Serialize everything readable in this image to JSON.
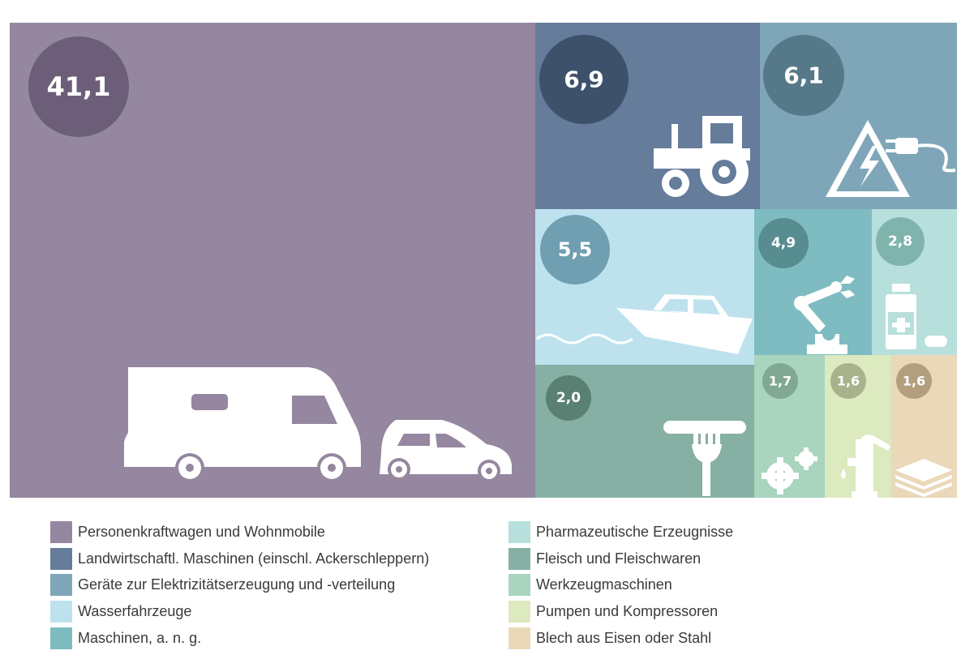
{
  "chart_data": {
    "type": "treemap",
    "decimal_separator": ",",
    "items": [
      {
        "label": "Personenkraftwagen und Wohnmobile",
        "value": 41.1,
        "display": "41,1",
        "color": "#94879f",
        "bubble": "#6c5e78",
        "icon": "camper-car-icon"
      },
      {
        "label": "Landwirtschaftl. Maschinen (einschl. Ackerschleppern)",
        "value": 6.9,
        "display": "6,9",
        "color": "#667c9b",
        "bubble": "#3e516a",
        "icon": "tractor-icon"
      },
      {
        "label": "Geräte zur Elektrizitätserzeugung und -verteilung",
        "value": 6.1,
        "display": "6,1",
        "color": "#7fa6b8",
        "bubble": "#56798a",
        "icon": "electricity-plug-icon"
      },
      {
        "label": "Wasserfahrzeuge",
        "value": 5.5,
        "display": "5,5",
        "color": "#bde2ee",
        "bubble": "#6f9fb0",
        "icon": "boat-icon"
      },
      {
        "label": "Maschinen, a. n. g.",
        "value": 4.9,
        "display": "4,9",
        "color": "#7fbcc1",
        "bubble": "#578d90",
        "icon": "robot-arm-icon"
      },
      {
        "label": "Pharmazeutische Erzeugnisse",
        "value": 2.8,
        "display": "2,8",
        "color": "#b7dfdb",
        "bubble": "#7fb4ad",
        "icon": "medicine-icon"
      },
      {
        "label": "Fleisch und Fleischwaren",
        "value": 2.0,
        "display": "2,0",
        "color": "#86b0a3",
        "bubble": "#5a8074",
        "icon": "sausage-fork-icon"
      },
      {
        "label": "Werkzeugmaschinen",
        "value": 1.7,
        "display": "1,7",
        "color": "#a9d4be",
        "bubble": "#80a892",
        "icon": "gears-icon"
      },
      {
        "label": "Pumpen und Kompressoren",
        "value": 1.6,
        "display": "1,6",
        "color": "#dde9bf",
        "bubble": "#a8b28c",
        "icon": "water-pump-icon"
      },
      {
        "label": "Blech aus Eisen oder Stahl",
        "value": 1.6,
        "display": "1,6",
        "color": "#ead8b9",
        "bubble": "#b39f7e",
        "icon": "sheet-layers-icon"
      }
    ]
  }
}
